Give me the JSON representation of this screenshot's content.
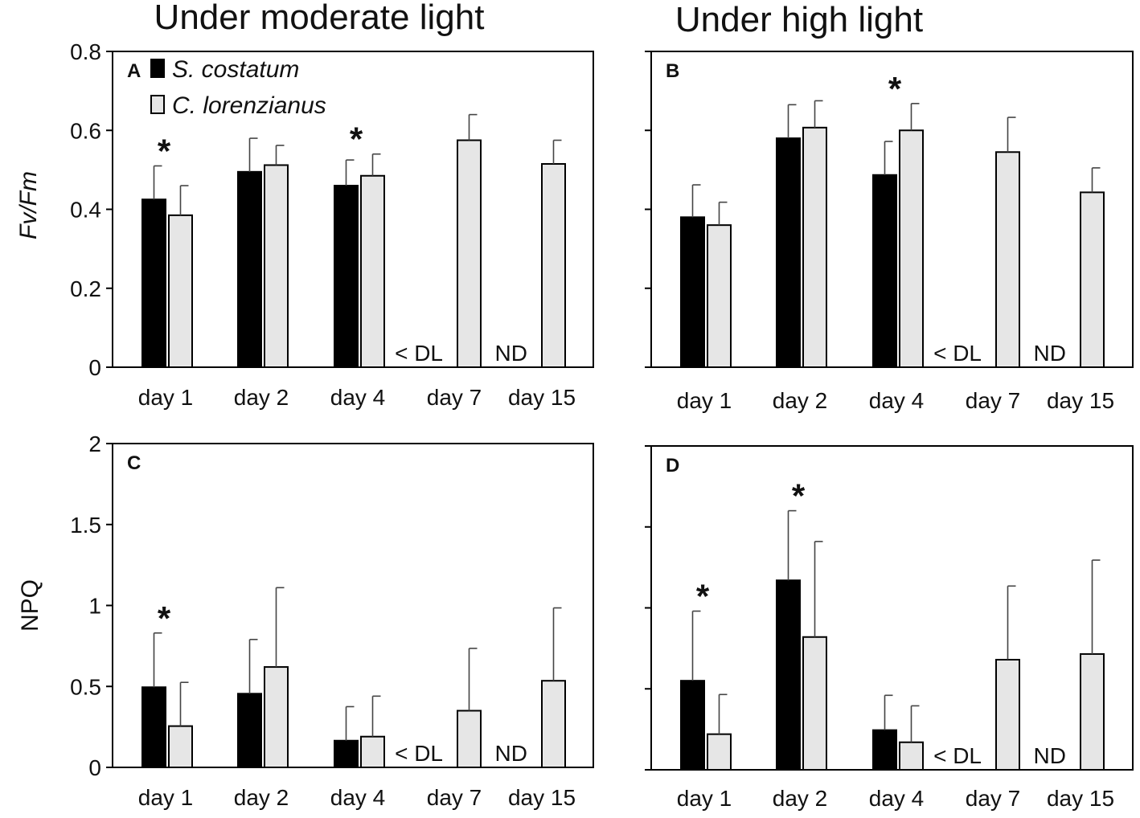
{
  "column_titles": [
    "Under moderate light",
    "Under high light"
  ],
  "colors": {
    "series_1": "#000000",
    "series_2": "#e6e6e6",
    "stroke": "#000000"
  },
  "chart_data": [
    {
      "type": "bar",
      "panel": "A",
      "title": "Under moderate light",
      "ylabel": "Fv/Fm",
      "ylabel_italic": true,
      "ylim": [
        0,
        0.8
      ],
      "yticks": [
        0,
        0.2,
        0.4,
        0.6,
        0.8
      ],
      "ytick_labels": [
        "0",
        "0.2",
        "0.4",
        "0.6",
        "0.8"
      ],
      "categories": [
        "day 1",
        "day 2",
        "day 4",
        "day 7",
        "day 15"
      ],
      "series": [
        {
          "name": "S. costatum",
          "values": [
            0.425,
            0.495,
            0.46,
            null,
            null
          ],
          "errors": [
            0.085,
            0.085,
            0.065,
            null,
            null
          ]
        },
        {
          "name": "C. lorenzianus",
          "values": [
            0.385,
            0.512,
            0.485,
            0.575,
            0.515
          ],
          "errors": [
            0.075,
            0.05,
            0.055,
            0.065,
            0.06
          ]
        }
      ],
      "significance": [
        "*",
        "",
        "*",
        "",
        ""
      ],
      "notes": [
        "",
        "",
        "",
        "< DL",
        "ND"
      ],
      "legend": true
    },
    {
      "type": "bar",
      "panel": "B",
      "title": "Under high light",
      "ylabel": "",
      "ylim": [
        0,
        0.8
      ],
      "yticks": [
        0,
        0.2,
        0.4,
        0.6,
        0.8
      ],
      "ytick_labels": [],
      "categories": [
        "day 1",
        "day 2",
        "day 4",
        "day 7",
        "day 15"
      ],
      "series": [
        {
          "name": "S. costatum",
          "values": [
            0.38,
            0.58,
            0.487,
            null,
            null
          ],
          "errors": [
            0.082,
            0.085,
            0.085,
            null,
            null
          ]
        },
        {
          "name": "C. lorenzianus",
          "values": [
            0.36,
            0.607,
            0.6,
            0.545,
            0.443
          ],
          "errors": [
            0.058,
            0.068,
            0.068,
            0.088,
            0.062
          ]
        }
      ],
      "significance": [
        "",
        "",
        "*",
        "",
        ""
      ],
      "notes": [
        "",
        "",
        "",
        "< DL",
        "ND"
      ],
      "legend": false
    },
    {
      "type": "bar",
      "panel": "C",
      "title": "",
      "ylabel": "NPQ",
      "ylabel_italic": false,
      "ylim": [
        0,
        2
      ],
      "yticks": [
        0,
        0.5,
        1,
        1.5,
        2
      ],
      "ytick_labels": [
        "0",
        "0.5",
        "1",
        "1.5",
        "2"
      ],
      "categories": [
        "day 1",
        "day 2",
        "day 4",
        "day 7",
        "day 15"
      ],
      "series": [
        {
          "name": "S. costatum",
          "values": [
            0.495,
            0.455,
            0.165,
            null,
            null
          ],
          "errors": [
            0.335,
            0.335,
            0.21,
            null,
            null
          ]
        },
        {
          "name": "C. lorenzianus",
          "values": [
            0.255,
            0.62,
            0.19,
            0.35,
            0.535
          ],
          "errors": [
            0.27,
            0.49,
            0.25,
            0.385,
            0.45
          ]
        }
      ],
      "significance": [
        "*",
        "",
        "",
        "",
        ""
      ],
      "notes": [
        "",
        "",
        "",
        "< DL",
        "ND"
      ],
      "legend": false
    },
    {
      "type": "bar",
      "panel": "D",
      "title": "",
      "ylabel": "",
      "ylim": [
        0,
        2
      ],
      "yticks": [
        0,
        0.5,
        1,
        1.5,
        2
      ],
      "ytick_labels": [],
      "categories": [
        "day 1",
        "day 2",
        "day 4",
        "day 7",
        "day 15"
      ],
      "series": [
        {
          "name": "S. costatum",
          "values": [
            0.55,
            1.17,
            0.245,
            null,
            null
          ],
          "errors": [
            0.43,
            0.43,
            0.215,
            null,
            null
          ]
        },
        {
          "name": "C. lorenzianus",
          "values": [
            0.22,
            0.82,
            0.17,
            0.68,
            0.715
          ],
          "errors": [
            0.245,
            0.59,
            0.225,
            0.455,
            0.58
          ]
        }
      ],
      "significance": [
        "*",
        "*",
        "",
        "",
        ""
      ],
      "notes": [
        "",
        "",
        "",
        "< DL",
        "ND"
      ],
      "legend": false
    }
  ]
}
